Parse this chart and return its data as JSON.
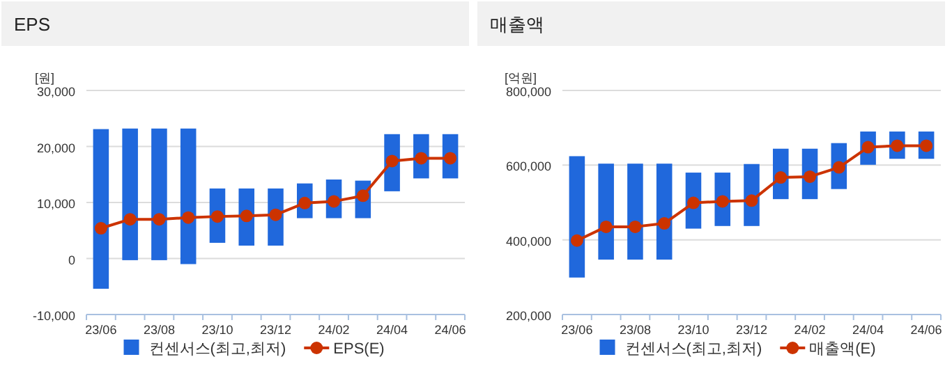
{
  "chart_data": [
    {
      "type": "bar",
      "title": "EPS",
      "ylabel": "[원]",
      "categories": [
        "23/06",
        null,
        "23/08",
        null,
        "23/10",
        null,
        "23/12",
        null,
        "24/02",
        null,
        "24/04",
        null,
        "24/06"
      ],
      "series": [
        {
          "name": "컨센서스(최고,최저)",
          "type": "bar",
          "color": "#2068dc",
          "base": [
            -5400,
            -300,
            -300,
            -1000,
            2800,
            2300,
            2300,
            7200,
            7200,
            7200,
            12000,
            14300,
            14300
          ],
          "values": [
            28500,
            23500,
            23500,
            24200,
            9700,
            10200,
            10200,
            6200,
            6900,
            6700,
            10200,
            7900,
            7900
          ]
        },
        {
          "name": "EPS(E)",
          "type": "line",
          "color": "#cc3300",
          "marker": "circle",
          "values": [
            5400,
            7000,
            7000,
            7300,
            7500,
            7600,
            7800,
            9900,
            10200,
            11200,
            17400,
            17900,
            17900
          ]
        }
      ],
      "ylim": [
        -10000,
        30000
      ],
      "yticks": [
        {
          "value": -10000,
          "label": "-10,000"
        },
        0,
        {
          "value": 10000,
          "label": "10,000"
        },
        {
          "value": 20000,
          "label": "20,000"
        },
        {
          "value": 30000,
          "label": "30,000"
        }
      ],
      "grid": "y",
      "legend": "bottom"
    },
    {
      "type": "bar",
      "title": "매출액",
      "ylabel": "[억원]",
      "categories": [
        "23/06",
        null,
        "23/08",
        null,
        "23/10",
        null,
        "23/12",
        null,
        "24/02",
        null,
        "24/04",
        null,
        "24/06"
      ],
      "series": [
        {
          "name": "컨센서스(최고,최저)",
          "type": "bar",
          "color": "#2068dc",
          "base": [
            299000,
            347000,
            347000,
            347000,
            430000,
            437000,
            437000,
            509000,
            509000,
            536000,
            601000,
            617000,
            617000
          ],
          "values": [
            325000,
            257000,
            257000,
            257000,
            150000,
            143000,
            166000,
            135000,
            135000,
            123000,
            89000,
            73000,
            73000
          ]
        },
        {
          "name": "매출액(E)",
          "type": "line",
          "color": "#cc3300",
          "marker": "circle",
          "values": [
            398000,
            435000,
            435000,
            444000,
            499000,
            503000,
            505000,
            567000,
            569000,
            594000,
            648000,
            652000,
            652000
          ]
        }
      ],
      "ylim": [
        200000,
        800000
      ],
      "yticks": [
        {
          "value": 200000,
          "label": "200,000"
        },
        {
          "value": 400000,
          "label": "400,000"
        },
        {
          "value": 600000,
          "label": "600,000"
        },
        {
          "value": 800000,
          "label": "800,000"
        }
      ],
      "grid": "y",
      "legend": "bottom"
    }
  ]
}
